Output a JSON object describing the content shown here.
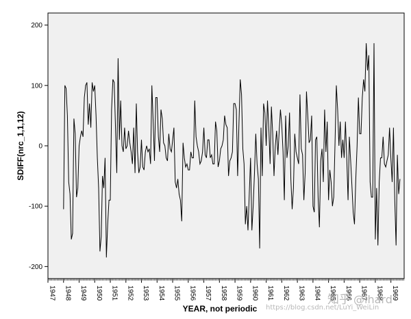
{
  "chart_data": {
    "type": "line",
    "xlabel": "YEAR, not periodic",
    "ylabel": "SDIFF(nrc_1,1,12)",
    "ylim": [
      -220,
      220
    ],
    "yticks": [
      -200,
      -100,
      0,
      100,
      200
    ],
    "xlim": [
      1947.0,
      1969.85
    ],
    "xticks": [
      "1947",
      "1948",
      "1949",
      "1950",
      "1951",
      "1952",
      "1953",
      "1954",
      "1955",
      "1956",
      "1957",
      "1958",
      "1959",
      "1960",
      "1961",
      "1962",
      "1963",
      "1964",
      "1965",
      "1966",
      "1967",
      "1968",
      "1969"
    ],
    "plot_background": "#f0f0f0",
    "line_color": "#000000",
    "series": [
      {
        "x_start": 1948.0,
        "x_step": 0.08333,
        "values": [
          -105,
          100,
          95,
          50,
          -60,
          -80,
          -155,
          -145,
          45,
          20,
          -85,
          -70,
          0,
          15,
          25,
          15,
          80,
          100,
          105,
          35,
          70,
          30,
          105,
          90,
          100,
          50,
          -20,
          -70,
          -175,
          -150,
          -50,
          -70,
          -20,
          -185,
          -130,
          -90,
          -90,
          60,
          110,
          105,
          30,
          -45,
          145,
          10,
          75,
          0,
          -10,
          30,
          -5,
          0,
          25,
          5,
          -10,
          -30,
          30,
          -45,
          70,
          -10,
          -45,
          -35,
          10,
          -35,
          -40,
          -10,
          0,
          -10,
          -5,
          -30,
          100,
          40,
          -25,
          80,
          80,
          15,
          -10,
          60,
          45,
          5,
          0,
          -20,
          -25,
          20,
          -5,
          -10,
          10,
          30,
          -60,
          -70,
          -55,
          -80,
          -90,
          -125,
          5,
          -20,
          -35,
          -30,
          -40,
          -40,
          -10,
          -20,
          -20,
          75,
          15,
          0,
          -10,
          -30,
          -25,
          -10,
          30,
          -15,
          -20,
          10,
          10,
          -20,
          -15,
          -30,
          -30,
          40,
          25,
          -35,
          -25,
          -5,
          0,
          10,
          50,
          35,
          30,
          -50,
          -25,
          -20,
          -10,
          70,
          70,
          60,
          -50,
          35,
          110,
          85,
          -5,
          -30,
          -130,
          -100,
          -140,
          -80,
          -20,
          -140,
          -100,
          -45,
          20,
          -30,
          -55,
          -170,
          30,
          -50,
          70,
          55,
          0,
          75,
          30,
          -30,
          65,
          20,
          -50,
          0,
          25,
          -15,
          25,
          60,
          35,
          -10,
          -90,
          50,
          -20,
          0,
          55,
          -55,
          -105,
          -70,
          20,
          -10,
          -20,
          -30,
          85,
          -5,
          -15,
          -90,
          -45,
          90,
          50,
          5,
          10,
          50,
          -100,
          -110,
          10,
          15,
          -85,
          -135,
          -25,
          -5,
          -60,
          60,
          -10,
          40,
          -90,
          -40,
          -60,
          -100,
          -85,
          5,
          100,
          60,
          0,
          40,
          -20,
          10,
          -20,
          40,
          -20,
          -90,
          15,
          -25,
          -65,
          -110,
          -130,
          -55,
          0,
          80,
          20,
          20,
          80,
          110,
          90,
          170,
          125,
          150,
          -60,
          -85,
          -85,
          170,
          -155,
          -70,
          -165,
          -60,
          -20,
          -20,
          15,
          -30,
          -35,
          -25,
          -15,
          30,
          -20,
          -60,
          30,
          -90,
          -165,
          -15,
          -80,
          -55
        ]
      }
    ]
  },
  "watermark": {
    "logo_text": "知乎",
    "handle": "@lhard",
    "url": "https://blog.csdn.net/LuYi_WeiLin"
  }
}
